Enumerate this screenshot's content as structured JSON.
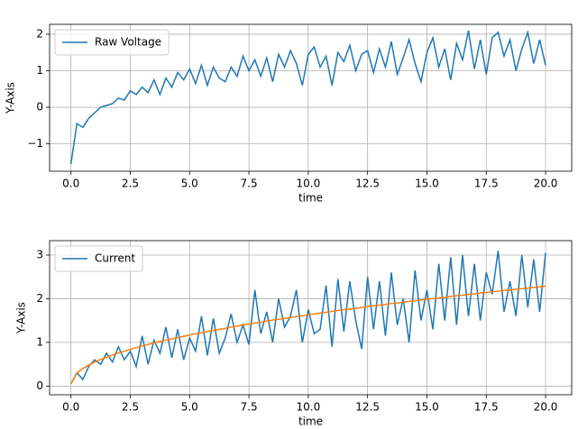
{
  "chart_data": [
    {
      "type": "line",
      "xlabel": "time",
      "ylabel": "Y-Axis",
      "grid": true,
      "legend": "upper left",
      "xlim": [
        -0.9,
        21.1
      ],
      "ylim": [
        -1.75,
        2.27
      ],
      "xticks": [
        {
          "value": 0,
          "label": "0.0"
        },
        2.5,
        {
          "value": 5,
          "label": "5.0"
        },
        7.5,
        {
          "value": 10,
          "label": "10.0"
        },
        12.5,
        {
          "value": 15,
          "label": "15.0"
        },
        17.5,
        {
          "value": 20,
          "label": "20.0"
        }
      ],
      "yticks": [
        {
          "value": -1,
          "label": "−1"
        },
        0,
        1,
        2
      ],
      "x": [
        0,
        0.25,
        0.5,
        0.75,
        1,
        1.25,
        1.5,
        1.75,
        2,
        2.25,
        2.5,
        2.75,
        3,
        3.25,
        3.5,
        3.75,
        4,
        4.25,
        4.5,
        4.75,
        5,
        5.25,
        5.5,
        5.75,
        6,
        6.25,
        6.5,
        6.75,
        7,
        7.25,
        7.5,
        7.75,
        8,
        8.25,
        8.5,
        8.75,
        9,
        9.25,
        9.5,
        9.75,
        10,
        10.25,
        10.5,
        10.75,
        11,
        11.25,
        11.5,
        11.75,
        12,
        12.25,
        12.5,
        12.75,
        13,
        13.25,
        13.5,
        13.75,
        14,
        14.25,
        14.5,
        14.75,
        15,
        15.25,
        15.5,
        15.75,
        16,
        16.25,
        16.5,
        16.75,
        17,
        17.25,
        17.5,
        17.75,
        18,
        18.25,
        18.5,
        18.75,
        19,
        19.25,
        19.5,
        19.75,
        20
      ],
      "series": [
        {
          "name": "Raw Voltage",
          "color": "#1f77b4",
          "values": [
            -1.55,
            -0.45,
            -0.55,
            -0.3,
            -0.15,
            0.0,
            0.05,
            0.1,
            0.25,
            0.2,
            0.45,
            0.35,
            0.55,
            0.4,
            0.75,
            0.35,
            0.8,
            0.55,
            0.95,
            0.75,
            1.05,
            0.65,
            1.15,
            0.6,
            1.1,
            0.8,
            0.7,
            1.1,
            0.85,
            1.4,
            1.0,
            1.3,
            0.85,
            1.35,
            0.7,
            1.45,
            1.1,
            1.55,
            1.2,
            0.6,
            1.45,
            1.65,
            1.1,
            1.4,
            0.6,
            1.5,
            1.25,
            1.7,
            1.0,
            1.45,
            1.55,
            0.95,
            1.6,
            1.1,
            1.8,
            0.9,
            1.35,
            1.85,
            1.2,
            0.7,
            1.5,
            1.9,
            1.1,
            1.6,
            0.75,
            1.75,
            1.3,
            2.1,
            1.05,
            1.85,
            0.9,
            1.9,
            2.05,
            1.4,
            1.85,
            1.0,
            1.6,
            2.05,
            1.2,
            1.85,
            1.15
          ]
        }
      ]
    },
    {
      "type": "line",
      "xlabel": "time",
      "ylabel": "Y-Axis",
      "grid": true,
      "legend": "upper left",
      "xlim": [
        -0.9,
        21.1
      ],
      "ylim": [
        -0.2,
        3.33
      ],
      "xticks": [
        {
          "value": 0,
          "label": "0.0"
        },
        2.5,
        {
          "value": 5,
          "label": "5.0"
        },
        7.5,
        {
          "value": 10,
          "label": "10.0"
        },
        12.5,
        {
          "value": 15,
          "label": "15.0"
        },
        17.5,
        {
          "value": 20,
          "label": "20.0"
        }
      ],
      "yticks": [
        0,
        1,
        2,
        3
      ],
      "x": [
        0,
        0.25,
        0.5,
        0.75,
        1,
        1.25,
        1.5,
        1.75,
        2,
        2.25,
        2.5,
        2.75,
        3,
        3.25,
        3.5,
        3.75,
        4,
        4.25,
        4.5,
        4.75,
        5,
        5.25,
        5.5,
        5.75,
        6,
        6.25,
        6.5,
        6.75,
        7,
        7.25,
        7.5,
        7.75,
        8,
        8.25,
        8.5,
        8.75,
        9,
        9.25,
        9.5,
        9.75,
        10,
        10.25,
        10.5,
        10.75,
        11,
        11.25,
        11.5,
        11.75,
        12,
        12.25,
        12.5,
        12.75,
        13,
        13.25,
        13.5,
        13.75,
        14,
        14.25,
        14.5,
        14.75,
        15,
        15.25,
        15.5,
        15.75,
        16,
        16.25,
        16.5,
        16.75,
        17,
        17.25,
        17.5,
        17.75,
        18,
        18.25,
        18.5,
        18.75,
        19,
        19.25,
        19.5,
        19.75,
        20
      ],
      "series": [
        {
          "name": "Current",
          "color": "#1f77b4",
          "values": [
            0.05,
            0.3,
            0.15,
            0.45,
            0.6,
            0.5,
            0.75,
            0.55,
            0.9,
            0.6,
            0.8,
            0.45,
            1.15,
            0.5,
            1.05,
            0.75,
            1.35,
            0.65,
            1.3,
            0.6,
            1.1,
            0.8,
            1.6,
            0.7,
            1.55,
            0.75,
            1.1,
            1.65,
            1.0,
            1.4,
            0.95,
            2.2,
            1.2,
            1.7,
            1.0,
            2.0,
            1.35,
            1.6,
            2.2,
            1.0,
            1.75,
            1.2,
            1.3,
            2.3,
            0.9,
            2.45,
            1.25,
            2.4,
            1.5,
            0.85,
            2.5,
            1.3,
            2.4,
            1.15,
            2.6,
            1.4,
            2.0,
            1.0,
            2.65,
            1.5,
            2.2,
            1.3,
            2.8,
            1.5,
            2.95,
            1.4,
            3.0,
            1.6,
            2.8,
            1.5,
            2.6,
            2.1,
            3.1,
            1.7,
            2.4,
            1.6,
            3.0,
            1.8,
            2.9,
            1.7,
            3.05
          ]
        },
        {
          "color": "#ff7f0e",
          "values": [
            0.05,
            0.3,
            0.4,
            0.48,
            0.55,
            0.61,
            0.66,
            0.71,
            0.76,
            0.8,
            0.84,
            0.88,
            0.92,
            0.95,
            0.99,
            1.02,
            1.05,
            1.08,
            1.11,
            1.14,
            1.17,
            1.2,
            1.22,
            1.25,
            1.27,
            1.3,
            1.32,
            1.35,
            1.37,
            1.4,
            1.42,
            1.44,
            1.46,
            1.49,
            1.51,
            1.53,
            1.55,
            1.57,
            1.59,
            1.61,
            1.63,
            1.65,
            1.67,
            1.69,
            1.71,
            1.73,
            1.75,
            1.76,
            1.78,
            1.8,
            1.82,
            1.84,
            1.85,
            1.87,
            1.89,
            1.9,
            1.92,
            1.94,
            1.95,
            1.97,
            1.99,
            2.0,
            2.02,
            2.03,
            2.05,
            2.07,
            2.08,
            2.1,
            2.11,
            2.13,
            2.14,
            2.16,
            2.17,
            2.19,
            2.2,
            2.22,
            2.23,
            2.24,
            2.26,
            2.27,
            2.29
          ]
        }
      ]
    }
  ]
}
